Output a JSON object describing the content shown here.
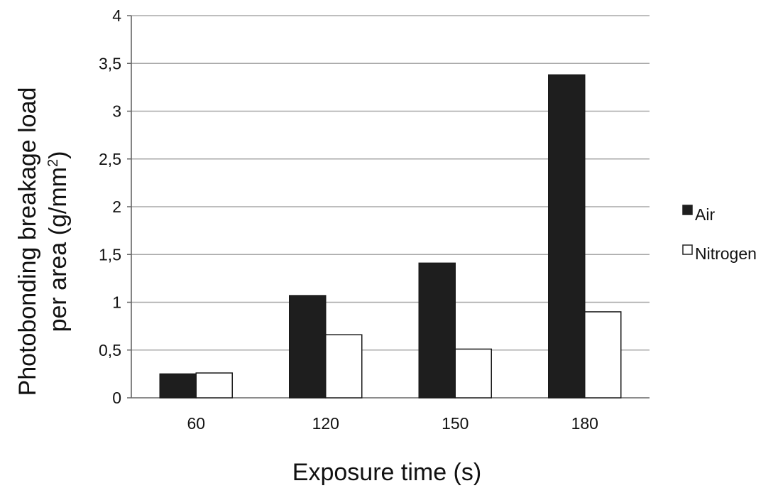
{
  "chart_data": {
    "type": "bar",
    "categories": [
      "60",
      "120",
      "150",
      "180"
    ],
    "series": [
      {
        "name": "Air",
        "values": [
          0.25,
          1.07,
          1.41,
          3.38
        ],
        "color": "#1e1e1e"
      },
      {
        "name": "Nitrogen",
        "values": [
          0.26,
          0.66,
          0.51,
          0.9
        ],
        "color": "#ffffff"
      }
    ],
    "title": "",
    "xlabel": "Exposure time (s)",
    "ylabel_line1": "Photobonding breakage load",
    "ylabel_line2_prefix": "per area (g/mm",
    "ylabel_line2_sup": "2",
    "ylabel_line2_suffix": ")",
    "ylim": [
      0,
      4
    ],
    "yticks": [
      {
        "value": 0,
        "label": "0"
      },
      {
        "value": 0.5,
        "label": "0,5"
      },
      {
        "value": 1,
        "label": "1"
      },
      {
        "value": 1.5,
        "label": "1,5"
      },
      {
        "value": 2,
        "label": "2"
      },
      {
        "value": 2.5,
        "label": "2,5"
      },
      {
        "value": 3,
        "label": "3"
      },
      {
        "value": 3.5,
        "label": "3,5"
      },
      {
        "value": 4,
        "label": "4"
      }
    ],
    "grid": true,
    "legend_position": "right"
  }
}
